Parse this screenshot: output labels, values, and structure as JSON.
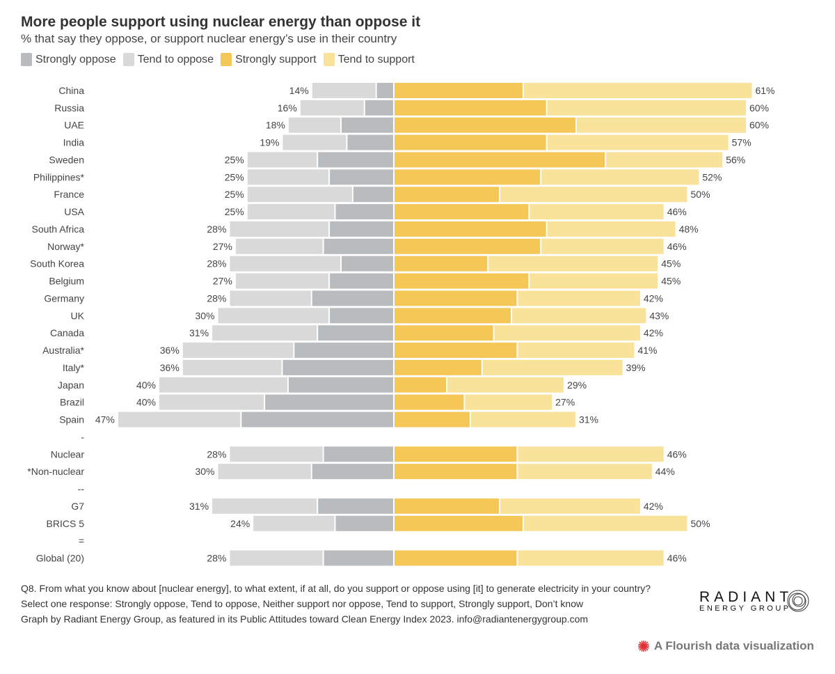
{
  "chart_data": {
    "type": "bar",
    "orientation": "horizontal-diverging-stacked",
    "title": "More people support using nuclear energy than oppose it",
    "subtitle": "% that say they oppose, or support nuclear energy’s use in their country",
    "legend": [
      "Strongly oppose",
      "Tend to oppose",
      "Strongly support",
      "Tend to support"
    ],
    "legend_position": "top-left",
    "colors": {
      "Strongly oppose": "#b9bcbe",
      "Tend to oppose": "#d9d9d9",
      "Strongly support": "#f5c757",
      "Tend to support": "#f9e29a"
    },
    "grid": false,
    "categories": [
      "China",
      "Russia",
      "UAE",
      "India",
      "Sweden",
      "Philippines*",
      "France",
      "USA",
      "South Africa",
      "Norway*",
      "South Korea",
      "Belgium",
      "Germany",
      "UK",
      "Canada",
      "Australia*",
      "Italy*",
      "Japan",
      "Brazil",
      "Spain",
      "-",
      "Nuclear",
      "*Non-nuclear",
      "--",
      "G7",
      "BRICS 5",
      "=",
      "Global (20)"
    ],
    "series": [
      {
        "name": "Strongly oppose",
        "values": [
          3,
          5,
          9,
          8,
          13,
          11,
          7,
          10,
          11,
          12,
          9,
          11,
          14,
          11,
          13,
          17,
          19,
          18,
          22,
          26,
          null,
          12,
          14,
          null,
          13,
          10,
          null,
          12
        ]
      },
      {
        "name": "Tend to oppose",
        "values": [
          11,
          11,
          9,
          11,
          12,
          14,
          18,
          15,
          17,
          15,
          19,
          16,
          14,
          19,
          18,
          19,
          17,
          22,
          18,
          21,
          null,
          16,
          16,
          null,
          18,
          14,
          null,
          16
        ]
      },
      {
        "name": "Strongly support",
        "values": [
          22,
          26,
          31,
          26,
          36,
          25,
          18,
          23,
          26,
          25,
          16,
          23,
          21,
          20,
          17,
          21,
          15,
          9,
          12,
          13,
          null,
          21,
          21,
          null,
          18,
          22,
          null,
          21
        ]
      },
      {
        "name": "Tend to support",
        "values": [
          39,
          34,
          29,
          31,
          20,
          27,
          32,
          23,
          22,
          21,
          29,
          22,
          21,
          23,
          25,
          20,
          24,
          20,
          15,
          18,
          null,
          25,
          23,
          null,
          24,
          28,
          null,
          25
        ]
      }
    ],
    "oppose_labels": [
      "14%",
      "16%",
      "18%",
      "19%",
      "25%",
      "25%",
      "25%",
      "25%",
      "28%",
      "27%",
      "28%",
      "27%",
      "28%",
      "30%",
      "31%",
      "36%",
      "36%",
      "40%",
      "40%",
      "47%",
      "",
      "28%",
      "30%",
      "",
      "31%",
      "24%",
      "",
      "28%"
    ],
    "support_labels": [
      "61%",
      "60%",
      "60%",
      "57%",
      "56%",
      "52%",
      "50%",
      "46%",
      "48%",
      "46%",
      "45%",
      "45%",
      "42%",
      "43%",
      "42%",
      "41%",
      "39%",
      "29%",
      "27%",
      "31%",
      "",
      "46%",
      "44%",
      "",
      "42%",
      "50%",
      "",
      "46%"
    ]
  },
  "footer": {
    "line1": "Q8. From what you know about [nuclear energy], to what extent, if at all, do you support or oppose using [it] to generate electricity in your country?",
    "line2": "Select one response: Strongly oppose, Tend to oppose, Neither support nor oppose, Tend to support, Strongly support, Don’t know",
    "line3": "Graph by Radiant Energy Group, as featured in its Public Attitudes toward Clean Energy Index 2023. info@radiantenergygroup.com"
  },
  "logo": {
    "line1": "RADIANT",
    "line2": "ENERGY GROUP"
  },
  "credit": "A Flourish data visualization"
}
